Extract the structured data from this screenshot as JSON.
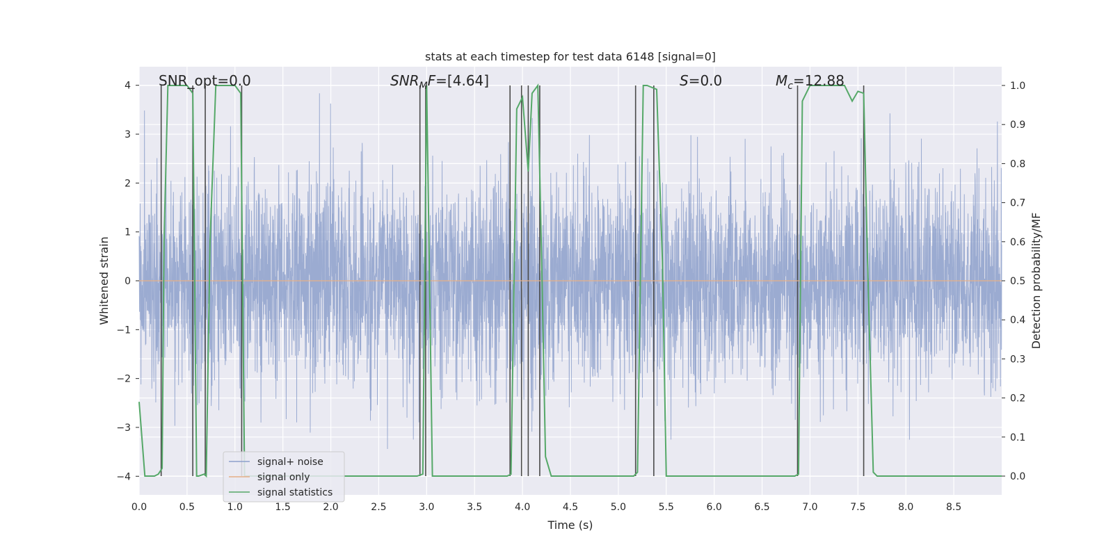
{
  "chart_data": {
    "type": "line",
    "title": "stats at each timestep for test data 6148 [signal=0]",
    "xlabel": "Time (s)",
    "ylabel_left": "Whitened strain",
    "ylabel_right": "Detection probability/MF",
    "xlim": [
      0.0,
      9.0
    ],
    "ylim_left": [
      -4.38,
      4.38
    ],
    "ylim_right": [
      -0.048,
      1.048
    ],
    "grid": true,
    "x_ticks": [
      "0.0",
      "0.5",
      "1.0",
      "1.5",
      "2.0",
      "2.5",
      "3.0",
      "3.5",
      "4.0",
      "4.5",
      "5.0",
      "5.5",
      "6.0",
      "6.5",
      "7.0",
      "7.5",
      "8.0",
      "8.5"
    ],
    "x_tick_values": [
      0,
      0.5,
      1,
      1.5,
      2,
      2.5,
      3,
      3.5,
      4,
      4.5,
      5,
      5.5,
      6,
      6.5,
      7,
      7.5,
      8,
      8.5
    ],
    "y_left_ticks": [
      "4",
      "3",
      "2",
      "1",
      "0",
      "−1",
      "−2",
      "−3",
      "−4"
    ],
    "y_left_tick_values": [
      4,
      3,
      2,
      1,
      0,
      -1,
      -2,
      -3,
      -4
    ],
    "y_right_ticks": [
      "1.0",
      "0.9",
      "0.8",
      "0.7",
      "0.6",
      "0.5",
      "0.4",
      "0.3",
      "0.2",
      "0.1",
      "0.0"
    ],
    "y_right_tick_values": [
      1.0,
      0.9,
      0.8,
      0.7,
      0.6,
      0.5,
      0.4,
      0.3,
      0.2,
      0.1,
      0.0
    ],
    "annotations": [
      {
        "text": "SNR_opt=0.0",
        "x": 0.2
      },
      {
        "text": "SNRₘF=[4.64]",
        "x": 2.6
      },
      {
        "text": "S=0.0",
        "x": 5.6
      },
      {
        "text": "Mᶜ=12.88",
        "x": 6.6
      }
    ],
    "legend": {
      "location": "lower-left",
      "entries": [
        {
          "label": "signal+ noise",
          "color": "#8da0cb"
        },
        {
          "label": "signal only",
          "color": "#e5ae86"
        },
        {
          "label": "signal statistics",
          "color": "#55a868"
        }
      ]
    },
    "series": [
      {
        "name": "signal+ noise",
        "color": "#8da0cb",
        "axis": "left",
        "description": "dense whitened strain noise, amplitude mostly within -2..2, peaks to ~4",
        "sample_rate_hz": 1024,
        "duration_s": 9.0
      },
      {
        "name": "signal only",
        "color": "#e5ae86",
        "axis": "left",
        "x": [
          0,
          9
        ],
        "y": [
          0,
          0
        ]
      },
      {
        "name": "signal statistics",
        "color": "#55a868",
        "axis": "right",
        "x": [
          0.0,
          0.06,
          0.1,
          0.16,
          0.2,
          0.24,
          0.26,
          0.3,
          0.4,
          0.5,
          0.56,
          0.6,
          0.62,
          0.68,
          0.7,
          0.74,
          0.8,
          0.9,
          1.0,
          1.06,
          1.1,
          1.2,
          2.0,
          2.9,
          2.96,
          3.0,
          3.06,
          3.1,
          3.5,
          3.84,
          3.88,
          3.94,
          4.0,
          4.06,
          4.1,
          4.16,
          4.2,
          4.24,
          4.3,
          4.6,
          5.0,
          5.16,
          5.2,
          5.26,
          5.3,
          5.4,
          5.46,
          5.5,
          5.56,
          6.0,
          6.84,
          6.88,
          6.92,
          7.0,
          7.1,
          7.2,
          7.36,
          7.44,
          7.5,
          7.56,
          7.6,
          7.66,
          7.7,
          7.74,
          8.0,
          9.0
        ],
        "y": [
          0.19,
          0.0,
          0.0,
          0.0,
          0.005,
          0.02,
          0.6,
          1.0,
          1.0,
          1.0,
          0.98,
          0.0,
          0.0,
          0.005,
          0.0,
          0.6,
          1.0,
          1.0,
          1.0,
          0.98,
          0.0,
          0.0,
          0.0,
          0.0,
          0.005,
          1.0,
          0.0,
          0.0,
          0.0,
          0.0,
          0.005,
          0.94,
          0.97,
          0.78,
          0.98,
          1.0,
          0.55,
          0.05,
          0.0,
          0.0,
          0.0,
          0.0,
          0.01,
          1.0,
          1.0,
          0.99,
          0.55,
          0.0,
          0.0,
          0.0,
          0.0,
          0.005,
          0.96,
          1.0,
          1.0,
          1.0,
          1.0,
          0.96,
          0.985,
          0.98,
          0.55,
          0.01,
          0.0,
          0.0,
          0.0,
          0.0
        ]
      }
    ],
    "vertical_lines": [
      0.23,
      0.56,
      0.69,
      1.07,
      2.93,
      2.99,
      3.87,
      3.99,
      4.06,
      4.18,
      5.18,
      5.37,
      6.87,
      7.56
    ]
  }
}
